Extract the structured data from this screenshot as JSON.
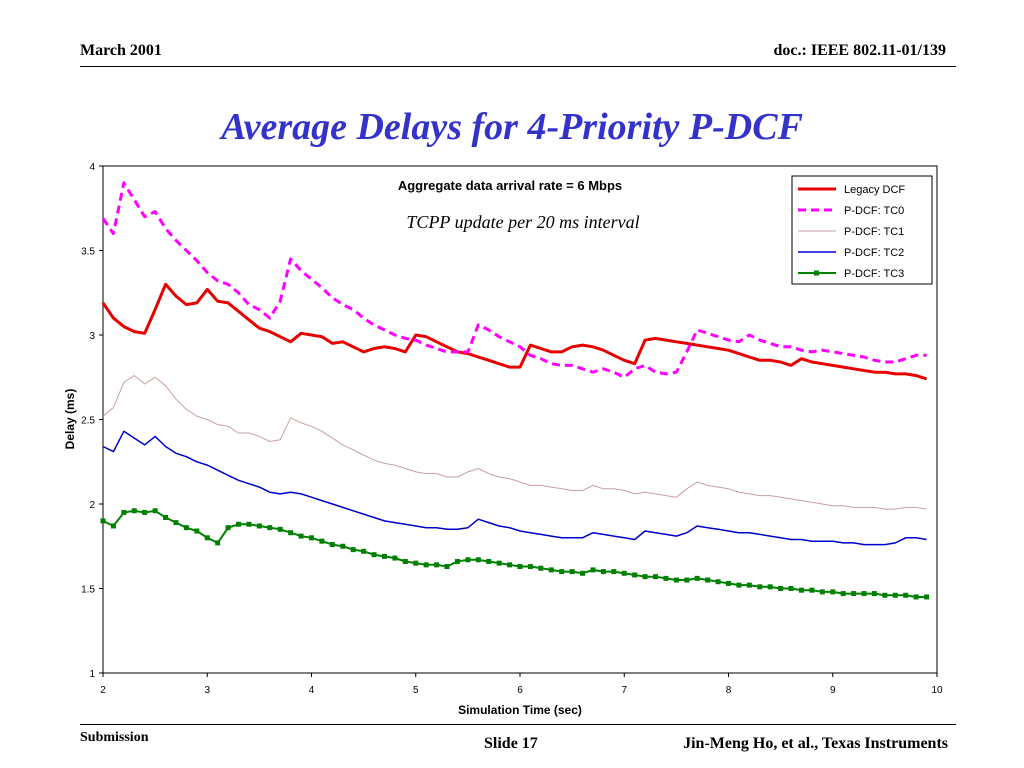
{
  "header": {
    "date": "March 2001",
    "doc": "doc.: IEEE 802.11-01/139"
  },
  "slide_title": "Average Delays for 4-Priority P-DCF",
  "footer": {
    "submission": "Submission",
    "slide": "Slide 17",
    "author": "Jin-Meng Ho, et al., Texas Instruments"
  },
  "chart_data": {
    "type": "line",
    "title": "Aggregate data arrival rate = 6 Mbps",
    "subtitle": "TCPP update per 20 ms interval",
    "xlabel": "Simulation Time (sec)",
    "ylabel": "Delay (ms)",
    "xlim": [
      2,
      10
    ],
    "ylim": [
      1,
      4
    ],
    "xticks": [
      2,
      3,
      4,
      5,
      6,
      7,
      8,
      9,
      10
    ],
    "yticks": [
      1,
      1.5,
      2,
      2.5,
      3,
      3.5,
      4
    ],
    "grid": false,
    "legend_position": "top-right",
    "x": [
      2.0,
      2.1,
      2.2,
      2.3,
      2.4,
      2.5,
      2.6,
      2.7,
      2.8,
      2.9,
      3.0,
      3.1,
      3.2,
      3.3,
      3.4,
      3.5,
      3.6,
      3.7,
      3.8,
      3.9,
      4.0,
      4.1,
      4.2,
      4.3,
      4.4,
      4.5,
      4.6,
      4.7,
      4.8,
      4.9,
      5.0,
      5.1,
      5.2,
      5.3,
      5.4,
      5.5,
      5.6,
      5.7,
      5.8,
      5.9,
      6.0,
      6.1,
      6.2,
      6.3,
      6.4,
      6.5,
      6.6,
      6.7,
      6.8,
      6.9,
      7.0,
      7.1,
      7.2,
      7.3,
      7.4,
      7.5,
      7.6,
      7.7,
      7.8,
      7.9,
      8.0,
      8.1,
      8.2,
      8.3,
      8.4,
      8.5,
      8.6,
      8.7,
      8.8,
      8.9,
      9.0,
      9.1,
      9.2,
      9.3,
      9.4,
      9.5,
      9.6,
      9.7,
      9.8,
      9.9
    ],
    "series": [
      {
        "name": "Legacy DCF",
        "color": "#e60000",
        "style": "solid-thick",
        "values": [
          3.19,
          3.1,
          3.05,
          3.02,
          3.01,
          3.15,
          3.3,
          3.23,
          3.18,
          3.19,
          3.27,
          3.2,
          3.19,
          3.14,
          3.09,
          3.04,
          3.02,
          2.99,
          2.96,
          3.01,
          3.0,
          2.99,
          2.95,
          2.96,
          2.93,
          2.9,
          2.92,
          2.93,
          2.92,
          2.9,
          3.0,
          2.99,
          2.96,
          2.93,
          2.9,
          2.89,
          2.87,
          2.85,
          2.83,
          2.81,
          2.81,
          2.94,
          2.92,
          2.9,
          2.9,
          2.93,
          2.94,
          2.93,
          2.91,
          2.88,
          2.85,
          2.83,
          2.97,
          2.98,
          2.97,
          2.96,
          2.95,
          2.94,
          2.93,
          2.92,
          2.91,
          2.89,
          2.87,
          2.85,
          2.85,
          2.84,
          2.82,
          2.86,
          2.84,
          2.83,
          2.82,
          2.81,
          2.8,
          2.79,
          2.78,
          2.78,
          2.77,
          2.77,
          2.76,
          2.74
        ]
      },
      {
        "name": "P-DCF:  TC0",
        "color": "#ff00ff",
        "style": "dashed",
        "values": [
          3.69,
          3.6,
          3.9,
          3.8,
          3.7,
          3.73,
          3.63,
          3.56,
          3.5,
          3.44,
          3.37,
          3.32,
          3.3,
          3.25,
          3.18,
          3.15,
          3.1,
          3.2,
          3.45,
          3.38,
          3.33,
          3.28,
          3.22,
          3.18,
          3.15,
          3.1,
          3.06,
          3.03,
          3.0,
          2.98,
          2.97,
          2.94,
          2.92,
          2.9,
          2.9,
          2.9,
          3.06,
          3.03,
          2.99,
          2.96,
          2.93,
          2.88,
          2.86,
          2.83,
          2.82,
          2.82,
          2.8,
          2.78,
          2.8,
          2.78,
          2.75,
          2.8,
          2.82,
          2.78,
          2.77,
          2.78,
          2.9,
          3.03,
          3.01,
          2.99,
          2.97,
          2.96,
          3.0,
          2.97,
          2.95,
          2.93,
          2.93,
          2.91,
          2.9,
          2.91,
          2.9,
          2.89,
          2.88,
          2.87,
          2.85,
          2.84,
          2.84,
          2.86,
          2.88,
          2.88
        ]
      },
      {
        "name": "P-DCF:  TC1",
        "color": "#c8a0a0",
        "style": "thin",
        "values": [
          2.52,
          2.57,
          2.72,
          2.76,
          2.71,
          2.75,
          2.7,
          2.62,
          2.56,
          2.52,
          2.5,
          2.47,
          2.46,
          2.42,
          2.42,
          2.4,
          2.37,
          2.38,
          2.51,
          2.48,
          2.46,
          2.43,
          2.39,
          2.35,
          2.32,
          2.29,
          2.26,
          2.24,
          2.23,
          2.21,
          2.19,
          2.18,
          2.18,
          2.16,
          2.16,
          2.19,
          2.21,
          2.18,
          2.16,
          2.15,
          2.13,
          2.11,
          2.11,
          2.1,
          2.09,
          2.08,
          2.08,
          2.11,
          2.09,
          2.09,
          2.08,
          2.06,
          2.07,
          2.06,
          2.05,
          2.04,
          2.09,
          2.13,
          2.11,
          2.1,
          2.09,
          2.07,
          2.06,
          2.05,
          2.05,
          2.04,
          2.03,
          2.02,
          2.01,
          2.0,
          1.99,
          1.99,
          1.98,
          1.98,
          1.98,
          1.97,
          1.97,
          1.98,
          1.98,
          1.97
        ]
      },
      {
        "name": "P-DCF:  TC2",
        "color": "#0000cc",
        "style": "solid",
        "values": [
          2.34,
          2.31,
          2.43,
          2.39,
          2.35,
          2.4,
          2.34,
          2.3,
          2.28,
          2.25,
          2.23,
          2.2,
          2.17,
          2.14,
          2.12,
          2.1,
          2.07,
          2.06,
          2.07,
          2.06,
          2.04,
          2.02,
          2.0,
          1.98,
          1.96,
          1.94,
          1.92,
          1.9,
          1.89,
          1.88,
          1.87,
          1.86,
          1.86,
          1.85,
          1.85,
          1.86,
          1.91,
          1.89,
          1.87,
          1.86,
          1.84,
          1.83,
          1.82,
          1.81,
          1.8,
          1.8,
          1.8,
          1.83,
          1.82,
          1.81,
          1.8,
          1.79,
          1.84,
          1.83,
          1.82,
          1.81,
          1.83,
          1.87,
          1.86,
          1.85,
          1.84,
          1.83,
          1.83,
          1.82,
          1.81,
          1.8,
          1.79,
          1.79,
          1.78,
          1.78,
          1.78,
          1.77,
          1.77,
          1.76,
          1.76,
          1.76,
          1.77,
          1.8,
          1.8,
          1.79
        ]
      },
      {
        "name": "P-DCF:  TC3",
        "color": "#008000",
        "style": "solid-square-markers",
        "values": [
          1.9,
          1.87,
          1.95,
          1.96,
          1.95,
          1.96,
          1.92,
          1.89,
          1.86,
          1.84,
          1.8,
          1.77,
          1.86,
          1.88,
          1.88,
          1.87,
          1.86,
          1.85,
          1.83,
          1.81,
          1.8,
          1.78,
          1.76,
          1.75,
          1.73,
          1.72,
          1.7,
          1.69,
          1.68,
          1.66,
          1.65,
          1.64,
          1.64,
          1.63,
          1.66,
          1.67,
          1.67,
          1.66,
          1.65,
          1.64,
          1.63,
          1.63,
          1.62,
          1.61,
          1.6,
          1.6,
          1.59,
          1.61,
          1.6,
          1.6,
          1.59,
          1.58,
          1.57,
          1.57,
          1.56,
          1.55,
          1.55,
          1.56,
          1.55,
          1.54,
          1.53,
          1.52,
          1.52,
          1.51,
          1.51,
          1.5,
          1.5,
          1.49,
          1.49,
          1.48,
          1.48,
          1.47,
          1.47,
          1.47,
          1.47,
          1.46,
          1.46,
          1.46,
          1.45,
          1.45
        ]
      }
    ]
  }
}
